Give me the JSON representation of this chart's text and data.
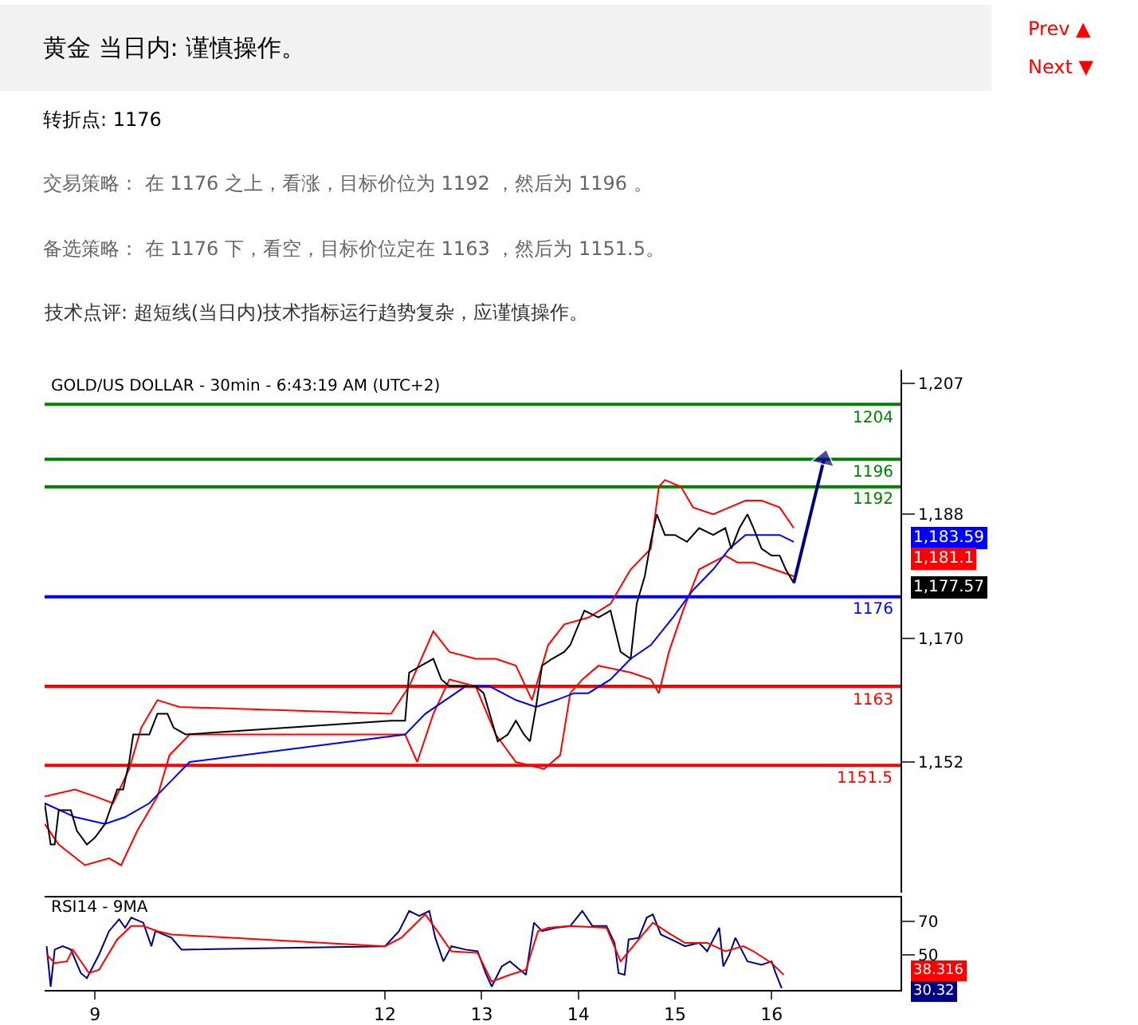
{
  "chart_data": [
    {
      "type": "line",
      "title": "黄金 当日内: 谨慎操作。",
      "annotations": [
        "Prev ▲",
        "Next ▼",
        "转折点: 1176",
        "交易策略： 在 1176 之上，看涨，目标价位为 1192 ，然后为 1196 。",
        "备选策略： 在 1176 下，看空，目标价位定在 1163 ，然后为 1151.5。",
        "技术点评: 超短线(当日内)技术指标运行趋势复杂，应谨慎操作。",
        "GOLD/US DOLLAR - 30min - 6:43:19 AM (UTC+2)",
        "1,183.59",
        "1,181.1",
        "1,177.57"
      ],
      "xlim": [
        "--10-08T11:30",
        "--10-17T08:00"
      ],
      "ylim": [
        1133,
        1209
      ],
      "yticks": [
        {
          "value": 1207,
          "label": "1,207"
        },
        {
          "value": 1188,
          "label": "1,188"
        },
        {
          "value": 1170,
          "label": "1,170"
        },
        {
          "value": 1152,
          "label": "1,152"
        }
      ],
      "tick_labels": "y",
      "marker": "none",
      "line_style": "solid",
      "ref_lines": [
        {
          "axis": "y",
          "value": 1204,
          "label": "1204",
          "color": "#008000"
        },
        {
          "axis": "y",
          "value": 1196,
          "label": "1196",
          "color": "#008000"
        },
        {
          "axis": "y",
          "value": 1192,
          "label": "1192",
          "color": "#008000"
        },
        {
          "axis": "y",
          "value": 1176,
          "label": "1176",
          "color": "#0000ff"
        },
        {
          "axis": "y",
          "value": 1163,
          "label": "1163",
          "color": "#ff0000"
        },
        {
          "axis": "y",
          "value": 1151.5,
          "label": "1151.5",
          "color": "#ff0000"
        }
      ],
      "series": [
        {
          "color": "#ff0000",
          "x": [
            "--10-08T11:30",
            "--10-08T19:00",
            "--10-09T00:00",
            "--10-09T04:30",
            "--10-09T08:30",
            "--10-09T11:30",
            "--10-09T15:30",
            "--10-09T21:00",
            "--10-12T01:30",
            "--10-12T06:00",
            "--10-12T12:00",
            "--10-12T16:00",
            "--10-12T22:30",
            "--10-13T03:30",
            "--10-13T08:30",
            "--10-13T12:30",
            "--10-13T16:30",
            "--10-13T20:30",
            "--10-14T02:30",
            "--10-14T08:00",
            "--10-14T13:00",
            "--10-14T18:00",
            "--10-14T20:00",
            "--10-14T21:30",
            "--10-15T01:30",
            "--10-15T04:30",
            "--10-15T09:30",
            "--10-15T13:30",
            "--10-15T17:30",
            "--10-15T21:30",
            "--10-16T02:00",
            "--10-16T05:30"
          ],
          "values": [
            1147,
            1148,
            1147,
            1146,
            1151,
            1157,
            1161,
            1160,
            1159,
            1163,
            1171,
            1168,
            1167,
            1167,
            1166,
            1161,
            1169,
            1172,
            1173,
            1175,
            1180,
            1183,
            1192,
            1193,
            1192,
            1189,
            1188,
            1189,
            1190,
            1190,
            1189,
            1186
          ]
        },
        {
          "color": "#ff0000",
          "x": [
            "--10-08T11:30",
            "--10-08T15:00",
            "--10-08T21:30",
            "--10-09T03:30",
            "--10-09T06:30",
            "--10-09T10:30",
            "--10-09T15:30",
            "--10-09T18:30",
            "--10-09T23:30",
            "--10-12T05:00",
            "--10-12T08:00",
            "--10-12T12:00",
            "--10-12T16:00",
            "--10-12T22:30",
            "--10-13T03:30",
            "--10-13T08:30",
            "--10-13T15:30",
            "--10-13T19:30",
            "--10-13T22:00",
            "--10-14T01:00",
            "--10-14T05:00",
            "--10-14T13:00",
            "--10-14T18:00",
            "--10-14T20:00",
            "--10-14T22:30",
            "--10-15T02:00",
            "--10-15T06:00",
            "--10-15T12:30",
            "--10-15T15:30",
            "--10-15T19:30",
            "--10-16T00:30",
            "--10-16T05:30"
          ],
          "values": [
            1143,
            1140,
            1137,
            1138,
            1137,
            1142,
            1147,
            1153,
            1156,
            1156,
            1152,
            1159,
            1164,
            1163,
            1156,
            1152,
            1151,
            1153,
            1162,
            1164,
            1166,
            1165,
            1164,
            1162,
            1168,
            1174,
            1180,
            1182,
            1181,
            1181,
            1180,
            1179
          ]
        },
        {
          "color": "#0000ff",
          "x": [
            "--10-08T11:30",
            "--10-08T19:00",
            "--10-09T02:30",
            "--10-09T07:30",
            "--10-09T13:30",
            "--10-09T18:30",
            "--10-09T23:30",
            "--10-12T05:00",
            "--10-12T10:00",
            "--10-12T15:00",
            "--10-12T20:00",
            "--10-13T02:00",
            "--10-13T08:30",
            "--10-13T13:30",
            "--10-13T18:30",
            "--10-13T23:00",
            "--10-14T02:30",
            "--10-14T08:00",
            "--10-14T13:00",
            "--10-14T18:00",
            "--10-14T23:30",
            "--10-15T04:30",
            "--10-15T09:30",
            "--10-15T13:30",
            "--10-15T17:30",
            "--10-15T21:30",
            "--10-16T02:00",
            "--10-16T05:30"
          ],
          "values": [
            1146,
            1144,
            1143,
            1144,
            1146,
            1149,
            1152,
            1156,
            1159,
            1161,
            1163,
            1163,
            1161,
            1160,
            1161,
            1162,
            1162,
            1164,
            1167,
            1169,
            1173,
            1177,
            1180,
            1183,
            1185,
            1185,
            1185,
            1184
          ]
        },
        {
          "color": "#000000",
          "x": [
            "--10-08T11:30",
            "--10-08T13:00",
            "--10-08T14:00",
            "--10-08T15:00",
            "--10-08T18:00",
            "--10-08T19:30",
            "--10-08T22:00",
            "--10-09T00:00",
            "--10-09T02:30",
            "--10-09T05:30",
            "--10-09T07:00",
            "--10-09T08:30",
            "--10-09T09:30",
            "--10-09T11:30",
            "--10-09T13:30",
            "--10-09T15:30",
            "--10-09T18:00",
            "--10-09T19:30",
            "--10-09T22:30",
            "--10-12T01:30",
            "--10-12T05:00",
            "--10-12T06:00",
            "--10-12T09:00",
            "--10-12T12:00",
            "--10-12T14:00",
            "--10-12T16:00",
            "--10-12T18:00",
            "--10-12T22:30",
            "--10-13T00:30",
            "--10-13T02:00",
            "--10-13T04:00",
            "--10-13T06:30",
            "--10-13T08:30",
            "--10-13T10:30",
            "--10-13T12:00",
            "--10-13T13:30",
            "--10-13T15:00",
            "--10-13T17:30",
            "--10-13T20:30",
            "--10-13T22:00",
            "--10-14T01:30",
            "--10-14T05:00",
            "--10-14T08:00",
            "--10-14T10:30",
            "--10-14T13:00",
            "--10-14T14:30",
            "--10-14T16:30",
            "--10-14T18:00",
            "--10-14T19:30",
            "--10-14T21:30",
            "--10-15T00:00",
            "--10-15T03:00",
            "--10-15T06:00",
            "--10-15T09:30",
            "--10-15T12:30",
            "--10-15T14:00",
            "--10-15T16:00",
            "--10-15T18:00",
            "--10-15T19:30",
            "--10-15T21:30",
            "--10-16T00:00",
            "--10-16T02:00",
            "--10-16T03:30",
            "--10-16T05:30"
          ],
          "values": [
            1146,
            1140,
            1140,
            1145,
            1145,
            1142,
            1140,
            1141,
            1143,
            1148,
            1148,
            1152,
            1156,
            1156,
            1156,
            1159,
            1159,
            1157,
            1156,
            1158,
            1158,
            1165,
            1166,
            1167,
            1164,
            1163,
            1163,
            1163,
            1162,
            1159,
            1155,
            1156,
            1158,
            1156,
            1155,
            1160,
            1166,
            1167,
            1168,
            1169,
            1174,
            1173,
            1174,
            1168,
            1167,
            1175,
            1179,
            1184,
            1188,
            1185,
            1185,
            1184,
            1186,
            1185,
            1186,
            1183,
            1186,
            1188,
            1186,
            1183,
            1182,
            1182,
            1180,
            1178
          ]
        },
        {
          "color": "#000080",
          "x": [
            "--10-16T05:30",
            "--10-16T13:00"
          ],
          "values": [
            1178,
            1196
          ],
          "marker": "triangle"
        }
      ]
    },
    {
      "type": "line",
      "title": "RSI14 - 9MA",
      "annotations": [
        "38.316",
        "30.32"
      ],
      "xlim": [
        "--10-08T11:30",
        "--10-17T08:00"
      ],
      "xticks": [
        {
          "value": "--10-09",
          "label": "9"
        },
        {
          "value": "--10-12",
          "label": "12"
        },
        {
          "value": "--10-13",
          "label": "13"
        },
        {
          "value": "--10-14",
          "label": "14"
        },
        {
          "value": "--10-15",
          "label": "15"
        },
        {
          "value": "--10-16",
          "label": "16"
        }
      ],
      "ylim": [
        29,
        84
      ],
      "yticks": [
        50,
        70
      ],
      "marker": "none",
      "line_style": "solid",
      "series": [
        {
          "color": "#000080",
          "x": [
            "--10-08T12:00",
            "--10-08T13:00",
            "--10-08T14:00",
            "--10-08T16:00",
            "--10-08T18:00",
            "--10-08T20:30",
            "--10-08T22:00",
            "--10-09T01:00",
            "--10-09T03:30",
            "--10-09T06:00",
            "--10-09T07:30",
            "--10-09T09:00",
            "--10-09T12:00",
            "--10-09T14:00",
            "--10-09T15:00",
            "--10-09T19:00",
            "--10-09T21:30",
            "--10-12T00:00",
            "--10-12T03:30",
            "--10-12T06:00",
            "--10-12T08:30",
            "--10-12T11:00",
            "--10-12T12:30",
            "--10-12T14:30",
            "--10-12T16:30",
            "--10-12T20:00",
            "--10-12T23:00",
            "--10-13T01:00",
            "--10-13T02:30",
            "--10-13T05:00",
            "--10-13T07:00",
            "--10-13T11:00",
            "--10-13T13:00",
            "--10-13T15:00",
            "--10-13T18:30",
            "--10-13T22:00",
            "--10-14T01:00",
            "--10-14T03:30",
            "--10-14T07:00",
            "--10-14T09:00",
            "--10-14T10:00",
            "--10-14T11:30",
            "--10-14T12:30",
            "--10-14T15:00",
            "--10-14T17:00",
            "--10-14T18:30",
            "--10-14T20:30",
            "--10-15T00:00",
            "--10-15T02:30",
            "--10-15T06:00",
            "--10-15T08:00",
            "--10-15T11:00",
            "--10-15T12:00",
            "--10-15T13:30",
            "--10-15T15:00",
            "--10-15T18:00",
            "--10-15T21:30",
            "--10-16T00:00",
            "--10-16T01:00",
            "--10-16T02:30"
          ],
          "values": [
            55,
            31,
            53,
            55,
            53,
            39,
            36,
            50,
            64,
            71,
            66,
            72,
            69,
            55,
            64,
            60,
            53,
            55,
            64,
            76,
            73,
            76,
            60,
            46,
            55,
            53,
            52,
            39,
            31,
            43,
            46,
            38,
            69,
            64,
            66,
            67,
            76,
            67,
            67,
            57,
            39,
            38,
            59,
            60,
            72,
            74,
            62,
            58,
            55,
            57,
            52,
            66,
            43,
            50,
            60,
            46,
            44,
            46,
            39,
            30
          ]
        },
        {
          "color": "#ff0000",
          "x": [
            "--10-08T12:00",
            "--10-08T14:00",
            "--10-08T17:00",
            "--10-08T18:30",
            "--10-08T22:30",
            "--10-09T01:00",
            "--10-09T05:30",
            "--10-09T09:00",
            "--10-09T12:00",
            "--10-09T15:30",
            "--10-09T19:00",
            "--10-12T00:00",
            "--10-12T04:00",
            "--10-12T10:00",
            "--10-12T13:00",
            "--10-12T16:30",
            "--10-12T23:00",
            "--10-13T02:30",
            "--10-13T07:00",
            "--10-13T11:00",
            "--10-13T14:00",
            "--10-13T16:30",
            "--10-13T22:00",
            "--10-14T07:00",
            "--10-14T10:30",
            "--10-14T15:00",
            "--10-14T18:30",
            "--10-14T23:00",
            "--10-15T02:30",
            "--10-15T08:00",
            "--10-15T12:30",
            "--10-15T17:00",
            "--10-15T19:30",
            "--10-16T00:00",
            "--10-16T03:00"
          ],
          "values": [
            50,
            45,
            46,
            53,
            39,
            41,
            59,
            67,
            67,
            64,
            62,
            55,
            60,
            74,
            64,
            52,
            51,
            34,
            38,
            41,
            64,
            66,
            67,
            66,
            46,
            59,
            69,
            62,
            57,
            57,
            52,
            55,
            52,
            45,
            38
          ]
        }
      ]
    }
  ]
}
